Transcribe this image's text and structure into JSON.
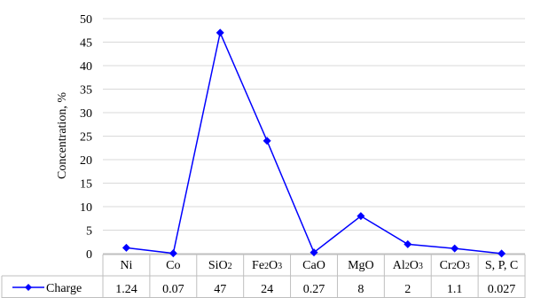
{
  "chart_data": {
    "type": "line",
    "ylabel": "Concentration, %",
    "ylim": [
      0,
      50
    ],
    "yticks": [
      0,
      5,
      10,
      15,
      20,
      25,
      30,
      35,
      40,
      45,
      50
    ],
    "grid": true,
    "legend_placement": "data-table-left",
    "categories": [
      {
        "base": "Ni",
        "parts": [
          [
            "Ni",
            false
          ]
        ]
      },
      {
        "base": "Co",
        "parts": [
          [
            "Co",
            false
          ]
        ]
      },
      {
        "base": "SiO2",
        "parts": [
          [
            "SiO",
            false
          ],
          [
            "2",
            true
          ]
        ]
      },
      {
        "base": "Fe2O3",
        "parts": [
          [
            "Fe",
            false
          ],
          [
            "2",
            true
          ],
          [
            "O",
            false
          ],
          [
            "3",
            true
          ]
        ]
      },
      {
        "base": "CaO",
        "parts": [
          [
            "CaO",
            false
          ]
        ]
      },
      {
        "base": "MgO",
        "parts": [
          [
            "MgO",
            false
          ]
        ]
      },
      {
        "base": "Al2O3",
        "parts": [
          [
            "Al",
            false
          ],
          [
            "2",
            true
          ],
          [
            "O",
            false
          ],
          [
            "3",
            true
          ]
        ]
      },
      {
        "base": "Cr2O3",
        "parts": [
          [
            "Cr",
            false
          ],
          [
            "2",
            true
          ],
          [
            "O",
            false
          ],
          [
            "3",
            true
          ]
        ]
      },
      {
        "base": "S, P, C",
        "parts": [
          [
            "S, P, C",
            false
          ]
        ]
      }
    ],
    "series": [
      {
        "name": "Charge",
        "color": "#0000ff",
        "values": [
          1.24,
          0.07,
          47,
          24,
          0.27,
          8,
          2,
          1.1,
          0.027
        ],
        "labels": [
          "1.24",
          "0.07",
          "47",
          "24",
          "0.27",
          "8",
          "2",
          "1.1",
          "0.027"
        ]
      }
    ]
  }
}
